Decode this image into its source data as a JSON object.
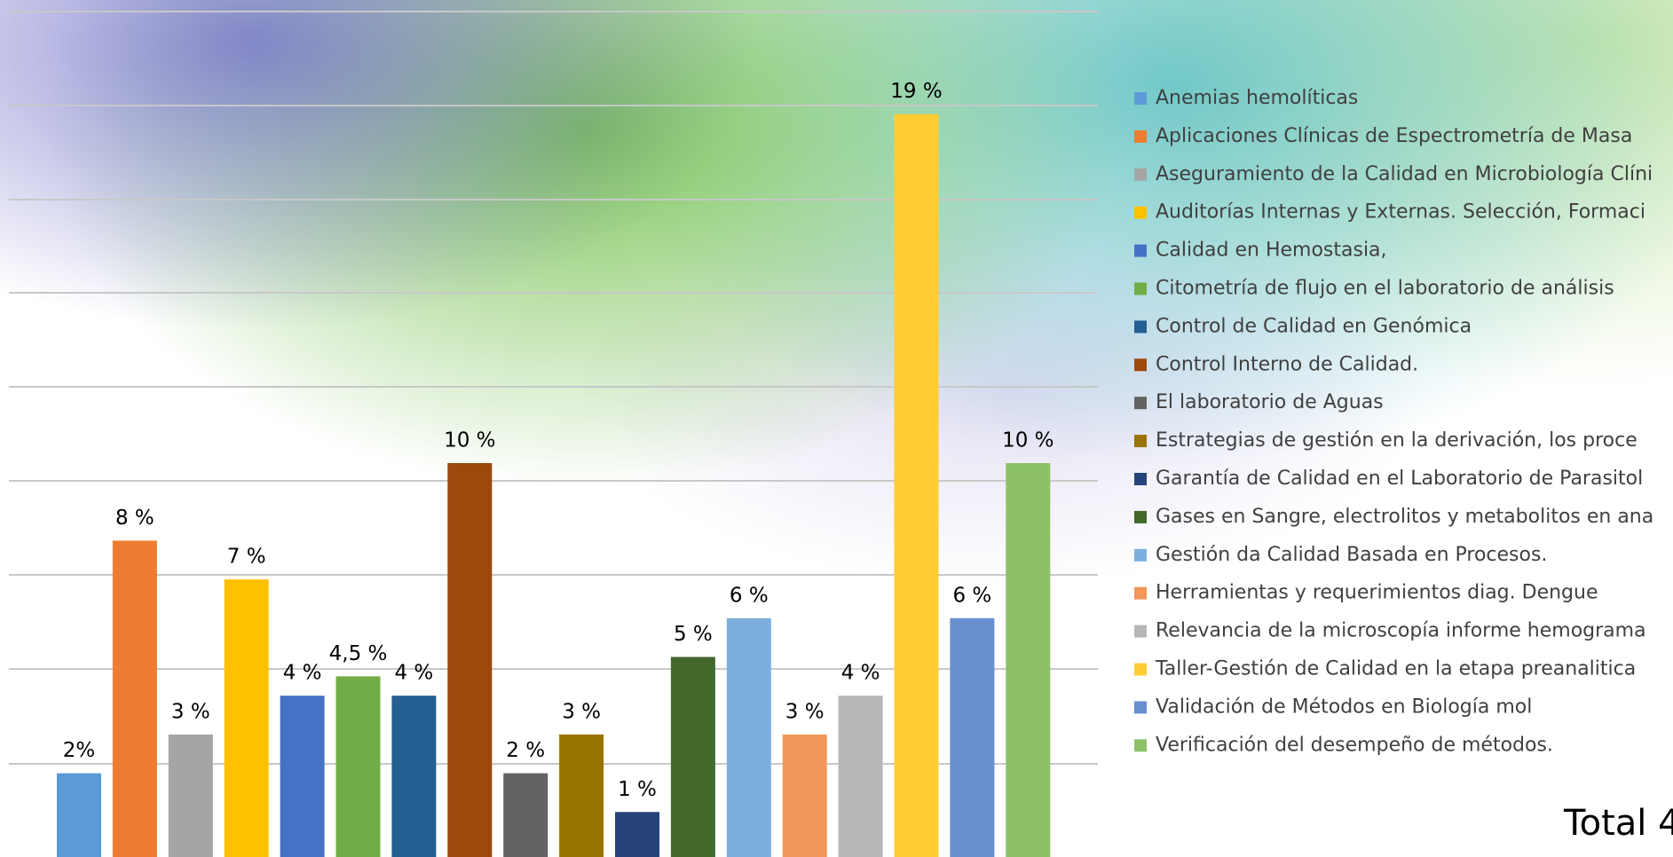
{
  "chart_data": {
    "type": "bar",
    "categories": [
      "Anemias hemolíticas",
      "Aplicaciones Clínicas de Espectrometría de Masa",
      "Aseguramiento de la Calidad en Microbiología Clíni",
      "Auditorías Internas y Externas. Selección, Formaci",
      "Calidad en Hemostasia,",
      "Citometría de flujo en el laboratorio de análisis",
      "Control de Calidad en Genómica",
      "Control Interno de Calidad.",
      "El laboratorio de Aguas",
      "Estrategias de gestión en la derivación, los proce",
      "Garantía de Calidad en el Laboratorio de Parasitol",
      "Gases en Sangre, electrolitos y metabolitos en ana",
      "Gestión da Calidad Basada en Procesos.",
      "Herramientas y requerimientos diag. Dengue",
      "Relevancia de la microscopía informe hemograma",
      "Taller-Gestión de Calidad en la etapa preanalitica",
      "Validación de Métodos en Biología mol",
      "Verificación del desempeño de métodos."
    ],
    "values": [
      2,
      8,
      3,
      7,
      4,
      4.5,
      4,
      10,
      2,
      3,
      1,
      5,
      6,
      3,
      4,
      19,
      6,
      10
    ],
    "value_labels": [
      "2%",
      "8 %",
      "3 %",
      "7 %",
      "4 %",
      "4,5 %",
      "4 %",
      "10 %",
      "2 %",
      "3 %",
      "1 %",
      "5 %",
      "6 %",
      "3 %",
      "4 %",
      "19 %",
      "6 %",
      "10 %"
    ],
    "colors": [
      "#5b9bd5",
      "#ed7d31",
      "#a5a5a5",
      "#ffc000",
      "#4472c4",
      "#70ad47",
      "#255e91",
      "#9e480e",
      "#636363",
      "#997300",
      "#264478",
      "#43682b",
      "#7cafdd",
      "#f1975a",
      "#b7b7b7",
      "#ffcd33",
      "#698ed0",
      "#8cc168"
    ],
    "legend": "right",
    "annotation": "Total 4"
  }
}
